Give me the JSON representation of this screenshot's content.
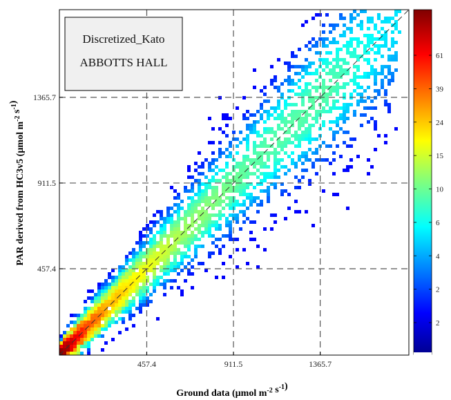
{
  "chart_data": {
    "type": "heatmap",
    "title": "",
    "xlabel": "Ground data (µmol m-2 s-1)",
    "ylabel": "PAR derived from HC3v5 (µmol m-2 s-1)",
    "xlim": [
      0,
      1830
    ],
    "ylim": [
      0,
      1830
    ],
    "x_ticks": [
      457.4,
      911.5,
      1365.7
    ],
    "y_ticks": [
      457.4,
      911.5,
      1365.7
    ],
    "x_tick_labels": [
      "457.4",
      "911.5",
      "1365.7"
    ],
    "y_tick_labels": [
      "457.4",
      "911.5",
      "1365.7"
    ],
    "grid": true,
    "reference_line": "1:1 diagonal (dashed)",
    "legend_box": {
      "position": "top-left",
      "lines": [
        "Discretized_Kato",
        "ABBOTTS HALL"
      ]
    },
    "colorbar": {
      "position": "right",
      "colormap": "jet",
      "tick_labels": [
        "61",
        "39",
        "24",
        "15",
        "10",
        "6",
        "4",
        "2",
        "2"
      ]
    },
    "density_ridge": [
      {
        "x": 20,
        "y": 20,
        "count": 61
      },
      {
        "x": 80,
        "y": 75,
        "count": 39
      },
      {
        "x": 150,
        "y": 140,
        "count": 24
      },
      {
        "x": 250,
        "y": 240,
        "count": 15
      },
      {
        "x": 400,
        "y": 400,
        "count": 10
      },
      {
        "x": 650,
        "y": 650,
        "count": 6
      },
      {
        "x": 1000,
        "y": 1000,
        "count": 4
      },
      {
        "x": 1400,
        "y": 1400,
        "count": 4
      },
      {
        "x": 1700,
        "y": 1700,
        "count": 2
      }
    ]
  }
}
